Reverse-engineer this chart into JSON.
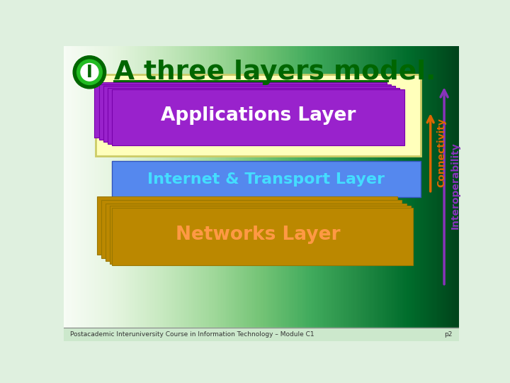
{
  "title": "A three layers model.",
  "title_color": "#006600",
  "bg_color": "#dff0df",
  "footer_text": "Postacademic Interuniversity Course in Information Technology – Module C1",
  "footer_right": "p2",
  "app_layer_label": "Applications Layer",
  "app_layer_text_color": "#ffffff",
  "app_outer_box_color": "#ffffbb",
  "app_outer_box_edge": "#cccc66",
  "app_purple": "#9922cc",
  "app_purple_edge": "#7700aa",
  "internet_layer_label": "Internet & Transport Layer",
  "internet_layer_color": "#5588ee",
  "internet_text_color": "#44ddff",
  "networks_layer_label": "Networks Layer",
  "networks_layer_color": "#bb8800",
  "networks_text_color": "#ff9944",
  "connectivity_color": "#dd6600",
  "interoperability_color": "#8833bb",
  "arrow_connectivity_label": "Connectivity",
  "arrow_interoperability_label": "Interoperability",
  "logo_outer": "#006600",
  "logo_inner": "#22bb22",
  "logo_white": "#ffffff"
}
